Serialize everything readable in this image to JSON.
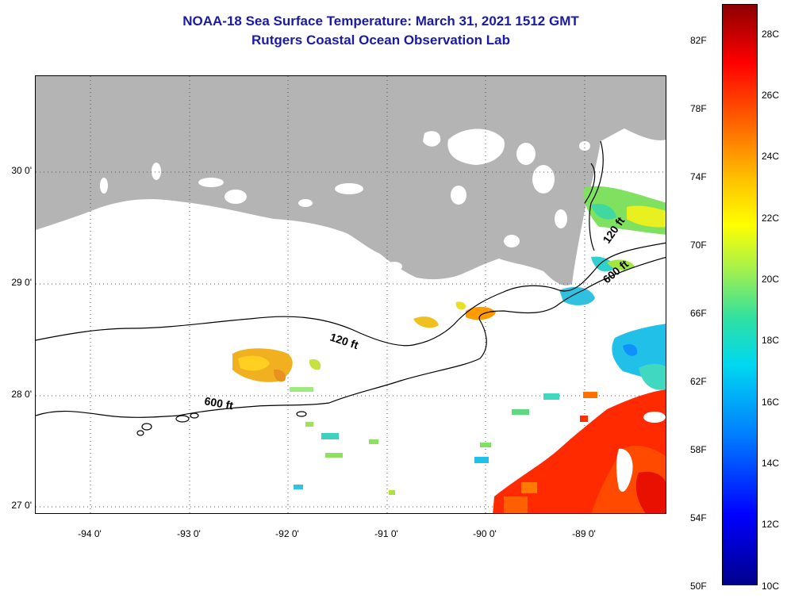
{
  "title": {
    "line1": "NOAA-18 Sea Surface Temperature:  March 31, 2021 1512 GMT",
    "line2": "Rutgers Coastal Ocean Observation Lab"
  },
  "map": {
    "lat_labels": [
      "30 0'",
      "29 0'",
      "28 0'",
      "27 0'"
    ],
    "lon_labels": [
      "-94 0'",
      "-93 0'",
      "-92 0'",
      "-91 0'",
      "-90 0'",
      "-89 0'"
    ],
    "contours": [
      "120 ft",
      "120 ft",
      "600 ft",
      "600 ft"
    ],
    "colors": {
      "land": "#b4b4b4",
      "grid": "#555555",
      "contour": "#000000"
    }
  },
  "colorbar": {
    "fahrenheit_labels": [
      "82F",
      "78F",
      "74F",
      "70F",
      "66F",
      "62F",
      "58F",
      "54F",
      "50F"
    ],
    "celsius_labels": [
      "28C",
      "26C",
      "24C",
      "22C",
      "20C",
      "18C",
      "16C",
      "14C",
      "12C",
      "10C"
    ],
    "range_c": [
      10,
      29
    ],
    "colormap": "jet"
  }
}
